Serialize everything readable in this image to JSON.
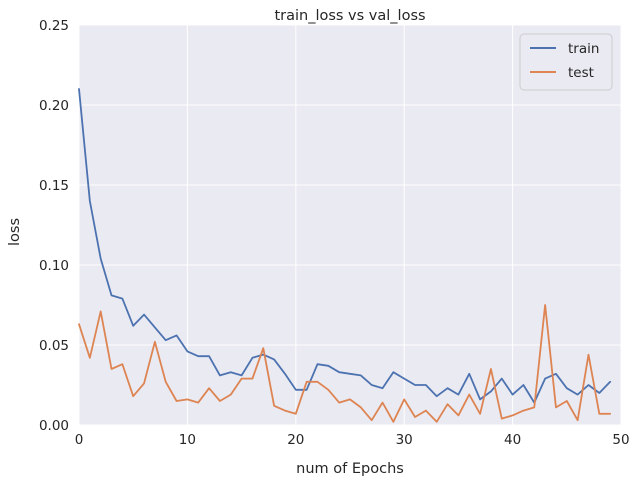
{
  "chart_data": {
    "type": "line",
    "title": "train_loss vs val_loss",
    "xlabel": "num of Epochs",
    "ylabel": "loss",
    "xlim": [
      0,
      50
    ],
    "ylim": [
      0,
      0.25
    ],
    "x_ticks": [
      0,
      10,
      20,
      30,
      40,
      50
    ],
    "x_tick_labels": [
      "0",
      "10",
      "20",
      "30",
      "40",
      "50"
    ],
    "y_ticks": [
      0.0,
      0.05,
      0.1,
      0.15,
      0.2,
      0.25
    ],
    "y_tick_labels": [
      "0.00",
      "0.05",
      "0.10",
      "0.15",
      "0.20",
      "0.25"
    ],
    "grid": true,
    "legend_position": "top-right",
    "background_color": "#eaeaf2",
    "grid_color": "#ffffff",
    "x": [
      0,
      1,
      2,
      3,
      4,
      5,
      6,
      7,
      8,
      9,
      10,
      11,
      12,
      13,
      14,
      15,
      16,
      17,
      18,
      19,
      20,
      21,
      22,
      23,
      24,
      25,
      26,
      27,
      28,
      29,
      30,
      31,
      32,
      33,
      34,
      35,
      36,
      37,
      38,
      39,
      40,
      41,
      42,
      43,
      44,
      45,
      46,
      47,
      48,
      49
    ],
    "series": [
      {
        "name": "train",
        "color": "#4c72b0",
        "values": [
          0.21,
          0.14,
          0.104,
          0.081,
          0.079,
          0.062,
          0.069,
          0.061,
          0.053,
          0.056,
          0.046,
          0.043,
          0.043,
          0.031,
          0.033,
          0.031,
          0.042,
          0.044,
          0.041,
          0.032,
          0.022,
          0.022,
          0.038,
          0.037,
          0.033,
          0.032,
          0.031,
          0.025,
          0.023,
          0.033,
          0.029,
          0.025,
          0.025,
          0.018,
          0.023,
          0.019,
          0.032,
          0.016,
          0.021,
          0.029,
          0.019,
          0.025,
          0.014,
          0.029,
          0.032,
          0.023,
          0.019,
          0.025,
          0.02,
          0.027
        ]
      },
      {
        "name": "test",
        "color": "#dd8452",
        "values": [
          0.063,
          0.042,
          0.071,
          0.035,
          0.038,
          0.018,
          0.026,
          0.052,
          0.027,
          0.015,
          0.016,
          0.014,
          0.023,
          0.015,
          0.019,
          0.029,
          0.029,
          0.048,
          0.012,
          0.009,
          0.007,
          0.027,
          0.027,
          0.022,
          0.014,
          0.016,
          0.011,
          0.003,
          0.014,
          0.002,
          0.016,
          0.005,
          0.009,
          0.002,
          0.013,
          0.006,
          0.019,
          0.007,
          0.035,
          0.004,
          0.006,
          0.009,
          0.011,
          0.075,
          0.011,
          0.015,
          0.003,
          0.044,
          0.007,
          0.007
        ]
      }
    ]
  }
}
